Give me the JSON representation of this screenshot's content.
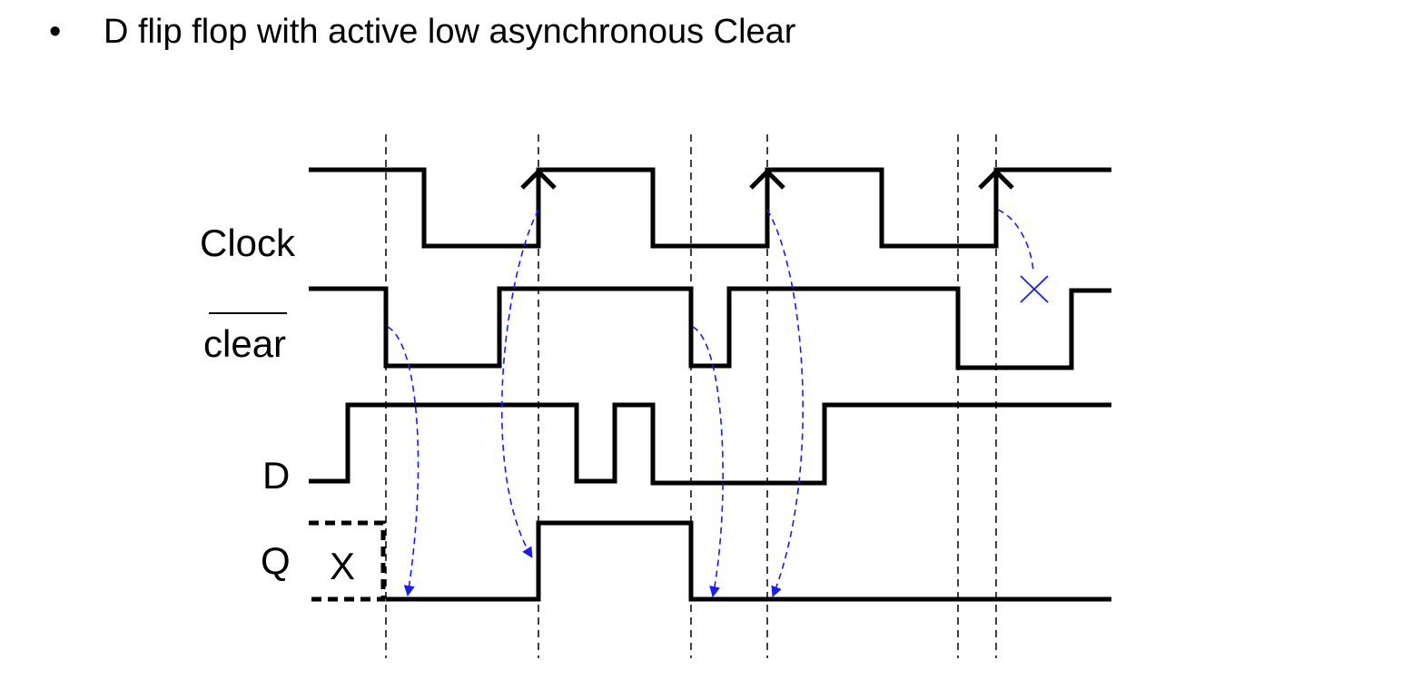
{
  "title": {
    "bullet": "•",
    "text": "D flip flop with active low asynchronous Clear"
  },
  "diagram": {
    "signals": [
      {
        "id": "clock",
        "label": "Clock",
        "overline": false
      },
      {
        "id": "clear",
        "label": "clear",
        "overline": true
      },
      {
        "id": "d",
        "label": "D",
        "overline": false
      },
      {
        "id": "q",
        "label": "Q",
        "overline": false
      }
    ],
    "unknown_marker": "X",
    "blocked_marker": "×",
    "colors": {
      "waveform": "#000000",
      "causality": "#1a1aff"
    }
  }
}
